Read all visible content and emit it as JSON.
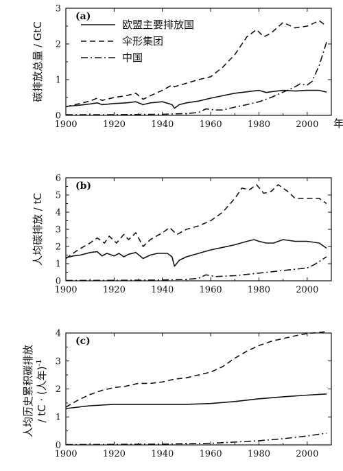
{
  "chart_data": [
    {
      "type": "line",
      "panel_label": "(a)",
      "ylabel": "碳排放总量 / GtC",
      "xunit": "年",
      "xlim": [
        1900,
        2010
      ],
      "ylim": [
        0,
        3
      ],
      "xticks": [
        1900,
        1920,
        1940,
        1960,
        1980,
        2000
      ],
      "yticks": [
        0,
        1,
        2,
        3
      ],
      "legend": [
        "欧盟主要排放国",
        "伞形集团",
        "中国"
      ],
      "legend_position": "top-left",
      "series": [
        {
          "name": "欧盟主要排放国",
          "style": "solid",
          "points": [
            [
              1900,
              0.25
            ],
            [
              1905,
              0.28
            ],
            [
              1910,
              0.32
            ],
            [
              1913,
              0.35
            ],
            [
              1915,
              0.3
            ],
            [
              1920,
              0.33
            ],
            [
              1925,
              0.35
            ],
            [
              1929,
              0.38
            ],
            [
              1932,
              0.3
            ],
            [
              1935,
              0.35
            ],
            [
              1940,
              0.38
            ],
            [
              1944,
              0.3
            ],
            [
              1945,
              0.2
            ],
            [
              1947,
              0.3
            ],
            [
              1950,
              0.35
            ],
            [
              1955,
              0.4
            ],
            [
              1960,
              0.48
            ],
            [
              1965,
              0.55
            ],
            [
              1970,
              0.62
            ],
            [
              1975,
              0.66
            ],
            [
              1980,
              0.7
            ],
            [
              1983,
              0.64
            ],
            [
              1985,
              0.66
            ],
            [
              1990,
              0.7
            ],
            [
              1995,
              0.68
            ],
            [
              2000,
              0.7
            ],
            [
              2005,
              0.7
            ],
            [
              2008,
              0.65
            ]
          ]
        },
        {
          "name": "伞形集团",
          "style": "dashed",
          "points": [
            [
              1900,
              0.24
            ],
            [
              1905,
              0.32
            ],
            [
              1910,
              0.4
            ],
            [
              1913,
              0.48
            ],
            [
              1915,
              0.42
            ],
            [
              1920,
              0.5
            ],
            [
              1925,
              0.55
            ],
            [
              1929,
              0.62
            ],
            [
              1932,
              0.45
            ],
            [
              1935,
              0.55
            ],
            [
              1940,
              0.7
            ],
            [
              1944,
              0.85
            ],
            [
              1945,
              0.8
            ],
            [
              1950,
              0.9
            ],
            [
              1955,
              1.0
            ],
            [
              1960,
              1.08
            ],
            [
              1965,
              1.35
            ],
            [
              1970,
              1.7
            ],
            [
              1975,
              2.2
            ],
            [
              1979,
              2.4
            ],
            [
              1982,
              2.2
            ],
            [
              1985,
              2.3
            ],
            [
              1990,
              2.6
            ],
            [
              1995,
              2.45
            ],
            [
              2000,
              2.5
            ],
            [
              2005,
              2.65
            ],
            [
              2008,
              2.5
            ]
          ]
        },
        {
          "name": "中国",
          "style": "dashdot",
          "points": [
            [
              1900,
              0.02
            ],
            [
              1920,
              0.02
            ],
            [
              1940,
              0.03
            ],
            [
              1950,
              0.05
            ],
            [
              1955,
              0.08
            ],
            [
              1958,
              0.18
            ],
            [
              1962,
              0.15
            ],
            [
              1965,
              0.15
            ],
            [
              1970,
              0.23
            ],
            [
              1975,
              0.3
            ],
            [
              1980,
              0.38
            ],
            [
              1985,
              0.5
            ],
            [
              1990,
              0.65
            ],
            [
              1995,
              0.8
            ],
            [
              1997,
              0.88
            ],
            [
              2000,
              0.85
            ],
            [
              2002,
              0.95
            ],
            [
              2005,
              1.4
            ],
            [
              2008,
              2.05
            ]
          ]
        }
      ]
    },
    {
      "type": "line",
      "panel_label": "(b)",
      "ylabel": "人均碳排放 / tC",
      "xlim": [
        1900,
        2010
      ],
      "ylim": [
        0,
        6
      ],
      "xticks": [
        1900,
        1920,
        1940,
        1960,
        1980,
        2000
      ],
      "yticks": [
        0,
        1,
        2,
        3,
        4,
        5,
        6
      ],
      "series": [
        {
          "name": "欧盟主要排放国",
          "style": "solid",
          "points": [
            [
              1900,
              1.35
            ],
            [
              1903,
              1.45
            ],
            [
              1906,
              1.5
            ],
            [
              1910,
              1.65
            ],
            [
              1913,
              1.7
            ],
            [
              1915,
              1.45
            ],
            [
              1917,
              1.6
            ],
            [
              1920,
              1.45
            ],
            [
              1922,
              1.6
            ],
            [
              1924,
              1.4
            ],
            [
              1926,
              1.55
            ],
            [
              1929,
              1.65
            ],
            [
              1932,
              1.3
            ],
            [
              1935,
              1.5
            ],
            [
              1938,
              1.6
            ],
            [
              1942,
              1.6
            ],
            [
              1944,
              1.4
            ],
            [
              1945,
              0.85
            ],
            [
              1947,
              1.2
            ],
            [
              1950,
              1.4
            ],
            [
              1955,
              1.6
            ],
            [
              1960,
              1.8
            ],
            [
              1965,
              1.95
            ],
            [
              1970,
              2.1
            ],
            [
              1975,
              2.3
            ],
            [
              1978,
              2.4
            ],
            [
              1980,
              2.3
            ],
            [
              1983,
              2.2
            ],
            [
              1986,
              2.2
            ],
            [
              1990,
              2.4
            ],
            [
              1995,
              2.3
            ],
            [
              2000,
              2.3
            ],
            [
              2005,
              2.2
            ],
            [
              2008,
              1.9
            ]
          ]
        },
        {
          "name": "伞形集团",
          "style": "dashed",
          "points": [
            [
              1900,
              1.3
            ],
            [
              1905,
              1.8
            ],
            [
              1910,
              2.2
            ],
            [
              1913,
              2.5
            ],
            [
              1916,
              2.2
            ],
            [
              1918,
              2.6
            ],
            [
              1921,
              2.2
            ],
            [
              1924,
              2.7
            ],
            [
              1926,
              2.4
            ],
            [
              1929,
              2.8
            ],
            [
              1932,
              2.0
            ],
            [
              1935,
              2.4
            ],
            [
              1940,
              2.8
            ],
            [
              1943,
              3.1
            ],
            [
              1946,
              2.7
            ],
            [
              1950,
              3.0
            ],
            [
              1955,
              3.2
            ],
            [
              1960,
              3.5
            ],
            [
              1965,
              4.0
            ],
            [
              1970,
              4.8
            ],
            [
              1973,
              5.4
            ],
            [
              1976,
              5.3
            ],
            [
              1979,
              5.6
            ],
            [
              1982,
              5.1
            ],
            [
              1985,
              5.2
            ],
            [
              1988,
              5.6
            ],
            [
              1992,
              5.2
            ],
            [
              1995,
              4.8
            ],
            [
              2000,
              4.8
            ],
            [
              2005,
              4.8
            ],
            [
              2008,
              4.5
            ]
          ]
        },
        {
          "name": "中国",
          "style": "dashdot",
          "points": [
            [
              1900,
              0.02
            ],
            [
              1920,
              0.03
            ],
            [
              1940,
              0.05
            ],
            [
              1950,
              0.08
            ],
            [
              1955,
              0.15
            ],
            [
              1958,
              0.35
            ],
            [
              1962,
              0.25
            ],
            [
              1970,
              0.3
            ],
            [
              1980,
              0.45
            ],
            [
              1990,
              0.6
            ],
            [
              2000,
              0.75
            ],
            [
              2003,
              0.95
            ],
            [
              2008,
              1.4
            ]
          ]
        }
      ]
    },
    {
      "type": "line",
      "panel_label": "(c)",
      "ylabel_line1": "人均历史累积碳排放",
      "ylabel_line2": "/ tC · (人年)",
      "ylabel_sup": "-1",
      "xlim": [
        1900,
        2010
      ],
      "ylim": [
        0,
        4
      ],
      "xticks": [
        1900,
        1920,
        1940,
        1960,
        1980,
        2000
      ],
      "yticks": [
        0,
        1,
        2,
        3,
        4
      ],
      "series": [
        {
          "name": "欧盟主要排放国",
          "style": "solid",
          "points": [
            [
              1900,
              1.3
            ],
            [
              1905,
              1.35
            ],
            [
              1910,
              1.4
            ],
            [
              1920,
              1.45
            ],
            [
              1930,
              1.45
            ],
            [
              1940,
              1.45
            ],
            [
              1950,
              1.45
            ],
            [
              1960,
              1.48
            ],
            [
              1970,
              1.55
            ],
            [
              1980,
              1.65
            ],
            [
              1990,
              1.72
            ],
            [
              2000,
              1.78
            ],
            [
              2008,
              1.82
            ]
          ]
        },
        {
          "name": "伞形集团",
          "style": "dashed",
          "points": [
            [
              1900,
              1.35
            ],
            [
              1905,
              1.6
            ],
            [
              1910,
              1.8
            ],
            [
              1915,
              1.95
            ],
            [
              1920,
              2.05
            ],
            [
              1925,
              2.1
            ],
            [
              1930,
              2.2
            ],
            [
              1935,
              2.2
            ],
            [
              1940,
              2.25
            ],
            [
              1945,
              2.35
            ],
            [
              1950,
              2.4
            ],
            [
              1955,
              2.5
            ],
            [
              1960,
              2.6
            ],
            [
              1965,
              2.8
            ],
            [
              1970,
              3.1
            ],
            [
              1975,
              3.35
            ],
            [
              1980,
              3.55
            ],
            [
              1985,
              3.7
            ],
            [
              1990,
              3.8
            ],
            [
              1995,
              3.9
            ],
            [
              2000,
              3.98
            ],
            [
              2005,
              4.02
            ],
            [
              2008,
              4.05
            ]
          ]
        },
        {
          "name": "中国",
          "style": "dashdot",
          "points": [
            [
              1900,
              0.01
            ],
            [
              1920,
              0.02
            ],
            [
              1940,
              0.03
            ],
            [
              1960,
              0.06
            ],
            [
              1970,
              0.1
            ],
            [
              1980,
              0.15
            ],
            [
              1990,
              0.22
            ],
            [
              2000,
              0.32
            ],
            [
              2008,
              0.42
            ]
          ]
        }
      ]
    }
  ]
}
